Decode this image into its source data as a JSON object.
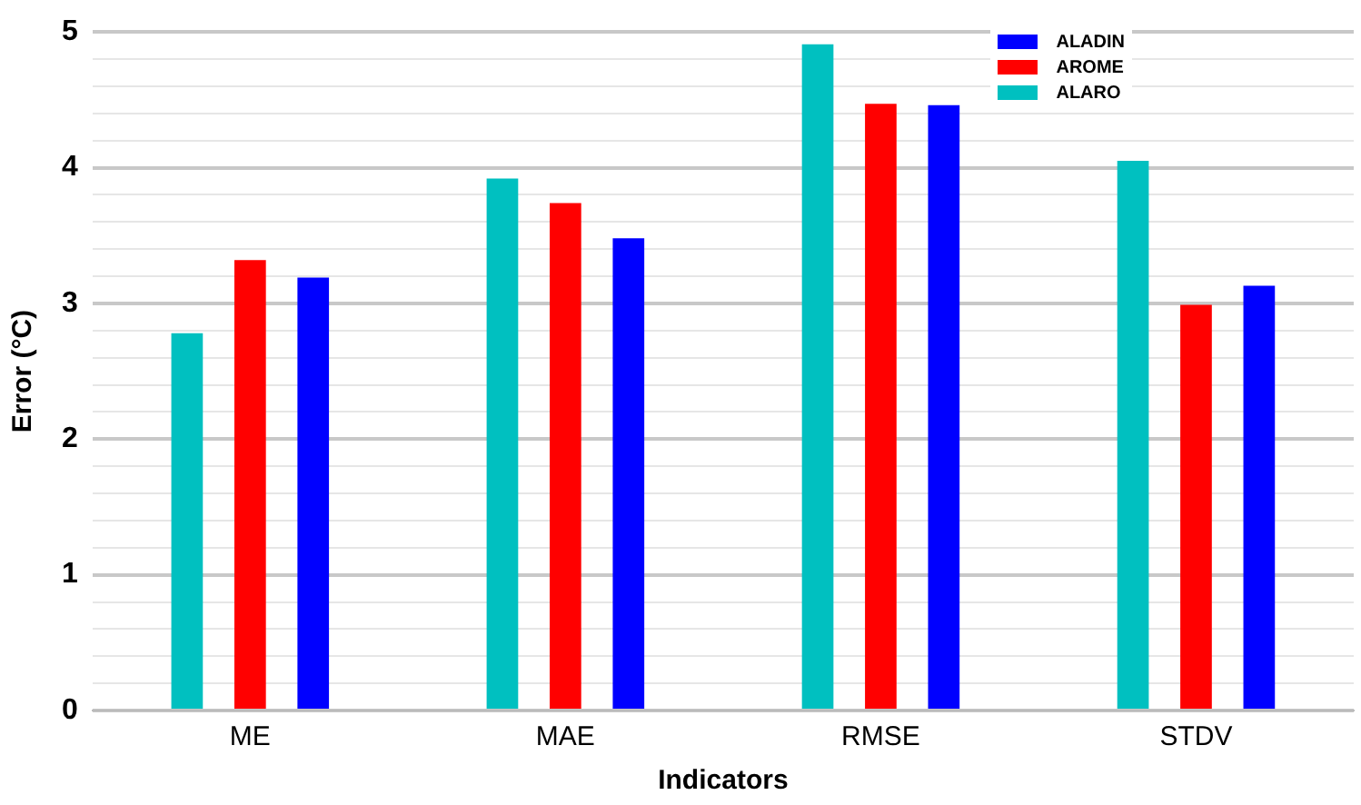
{
  "chart_data": {
    "type": "bar",
    "xlabel": "Indicators",
    "ylabel": "Error (°C)",
    "categories": [
      "ME",
      "MAE",
      "RMSE",
      "STDV"
    ],
    "series": [
      {
        "name": "ALARO",
        "color": "#00c0c0",
        "values": [
          2.78,
          3.92,
          4.91,
          4.05
        ]
      },
      {
        "name": "AROME",
        "color": "#ff0000",
        "values": [
          3.32,
          3.74,
          4.47,
          2.99
        ]
      },
      {
        "name": "ALADIN",
        "color": "#0000ff",
        "values": [
          3.19,
          3.48,
          4.46,
          3.13
        ]
      }
    ],
    "ylim": [
      0,
      5
    ],
    "yticks": [
      0,
      {
        "value": 0.2,
        "label": null
      },
      {
        "value": 0.4,
        "label": null
      },
      {
        "value": 0.6,
        "label": null
      },
      {
        "value": 0.8,
        "label": null
      },
      1,
      {
        "value": 1.2,
        "label": null
      },
      {
        "value": 1.4,
        "label": null
      },
      {
        "value": 1.6,
        "label": null
      },
      {
        "value": 1.8,
        "label": null
      },
      2,
      {
        "value": 2.2,
        "label": null
      },
      {
        "value": 2.4,
        "label": null
      },
      {
        "value": 2.6,
        "label": null
      },
      {
        "value": 2.8,
        "label": null
      },
      3,
      {
        "value": 3.2,
        "label": null
      },
      {
        "value": 3.4,
        "label": null
      },
      {
        "value": 3.6,
        "label": null
      },
      {
        "value": 3.8,
        "label": null
      },
      4,
      {
        "value": 4.2,
        "label": null
      },
      {
        "value": 4.4,
        "label": null
      },
      {
        "value": 4.6,
        "label": null
      },
      {
        "value": 4.8,
        "label": null
      },
      5
    ],
    "grid": "y",
    "legend": "top right"
  }
}
